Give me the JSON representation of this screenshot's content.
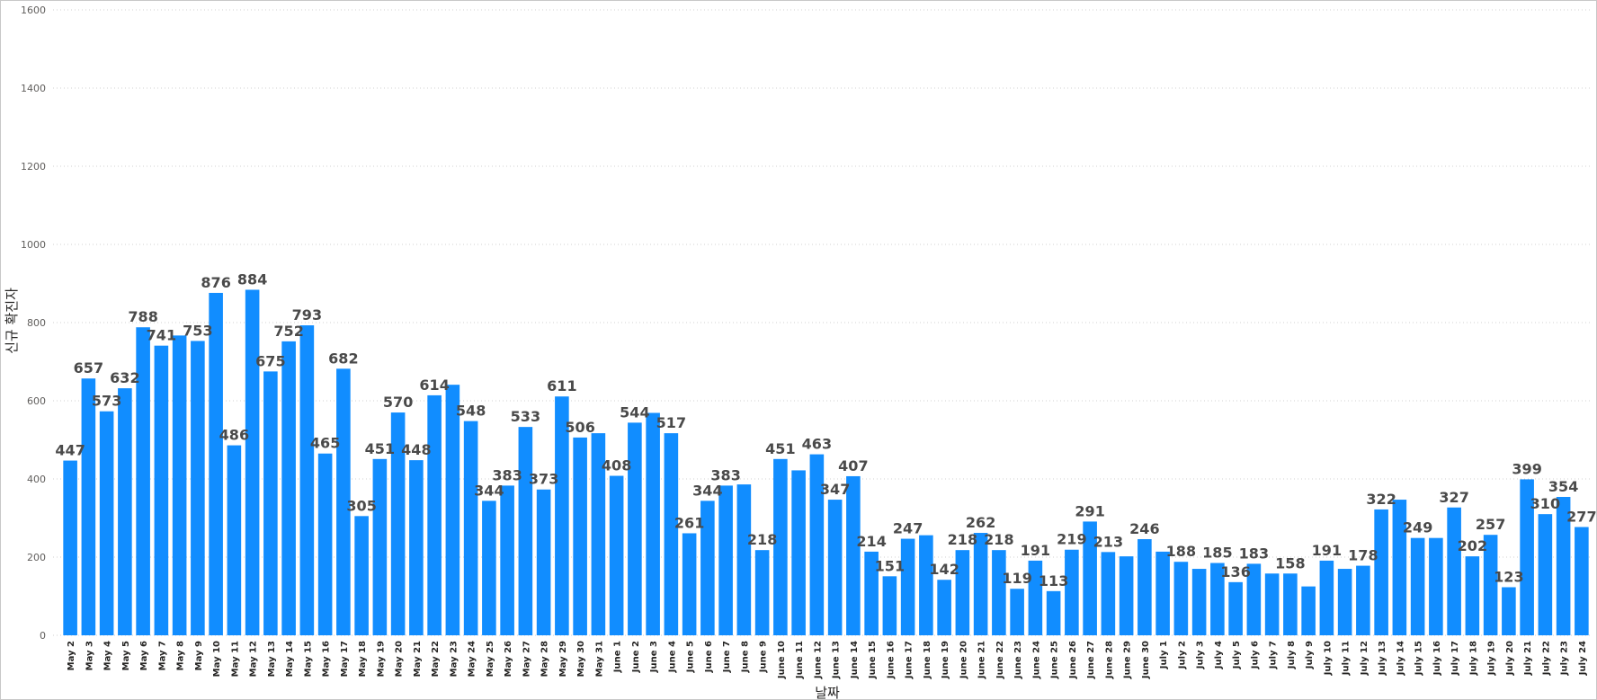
{
  "chart_data": {
    "type": "bar",
    "title": "",
    "xlabel": "날짜",
    "ylabel": "신규 확진자",
    "ylim": [
      0,
      1600
    ],
    "yticks": [
      0,
      200,
      400,
      600,
      800,
      1000,
      1200,
      1400,
      1600
    ],
    "grid": true,
    "colors": {
      "bar": "#118dff",
      "label": "#4a4a4a"
    },
    "categories": [
      "May 2",
      "May 3",
      "May 4",
      "May 5",
      "May 6",
      "May 7",
      "May 8",
      "May 9",
      "May 10",
      "May 11",
      "May 12",
      "May 13",
      "May 14",
      "May 15",
      "May 16",
      "May 17",
      "May 18",
      "May 19",
      "May 20",
      "May 21",
      "May 22",
      "May 23",
      "May 24",
      "May 25",
      "May 26",
      "May 27",
      "May 28",
      "May 29",
      "May 30",
      "May 31",
      "June 1",
      "June 2",
      "June 3",
      "June 4",
      "June 5",
      "June 6",
      "June 7",
      "June 8",
      "June 9",
      "June 10",
      "June 11",
      "June 12",
      "June 13",
      "June 14",
      "June 15",
      "June 16",
      "June 17",
      "June 18",
      "June 19",
      "June 20",
      "June 21",
      "June 22",
      "June 23",
      "June 24",
      "June 25",
      "June 26",
      "June 27",
      "June 28",
      "June 29",
      "June 30",
      "July 1",
      "July 2",
      "July 3",
      "July 4",
      "July 5",
      "July 6",
      "July 7",
      "July 8",
      "July 9",
      "July 10",
      "July 11",
      "July 12",
      "July 13",
      "July 14",
      "July 15",
      "July 16",
      "July 17",
      "July 18",
      "July 19",
      "July 20",
      "July 21",
      "July 22",
      "July 23",
      "July 24"
    ],
    "values": [
      447,
      657,
      573,
      632,
      788,
      741,
      767,
      753,
      876,
      486,
      884,
      675,
      752,
      793,
      465,
      682,
      305,
      451,
      570,
      448,
      614,
      641,
      548,
      344,
      383,
      533,
      373,
      611,
      506,
      517,
      408,
      544,
      569,
      517,
      261,
      344,
      383,
      386,
      218,
      451,
      422,
      463,
      347,
      407,
      214,
      151,
      247,
      256,
      142,
      218,
      262,
      218,
      119,
      191,
      113,
      219,
      291,
      213,
      202,
      246,
      214,
      188,
      170,
      185,
      136,
      183,
      158,
      158,
      125,
      191,
      170,
      178,
      322,
      347,
      249,
      249,
      327,
      202,
      257,
      123,
      399,
      310,
      354,
      277
    ],
    "labels": [
      "447",
      "657",
      "573",
      "632",
      "788",
      "741",
      "",
      "753",
      "876",
      "486",
      "884",
      "675",
      "752",
      "793",
      "465",
      "682",
      "305",
      "451",
      "570",
      "448",
      "614",
      "",
      "548",
      "344",
      "383",
      "533",
      "373",
      "611",
      "506",
      "",
      "408",
      "544",
      "",
      "517",
      "261",
      "344",
      "383",
      "",
      "218",
      "451",
      "",
      "463",
      "347",
      "407",
      "214",
      "151",
      "247",
      "",
      "142",
      "218",
      "262",
      "218",
      "119",
      "191",
      "113",
      "219",
      "291",
      "213",
      "",
      "246",
      "",
      "188",
      "",
      "185",
      "136",
      "183",
      "",
      "158",
      "",
      "191",
      "",
      "178",
      "322",
      "",
      "249",
      "",
      "327",
      "202",
      "257",
      "123",
      "399",
      "310",
      "354",
      "277"
    ]
  }
}
